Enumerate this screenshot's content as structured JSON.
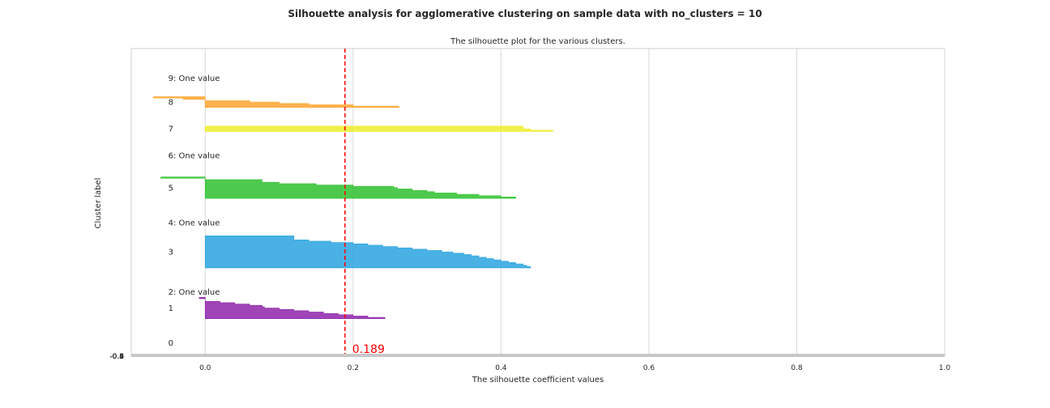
{
  "figure": {
    "suptitle": "Silhouette analysis for agglomerative clustering on sample data with no_clusters = 10"
  },
  "chart_data": {
    "type": "area",
    "title": "The silhouette plot for the various clusters.",
    "xlabel": "The silhouette coefficient values",
    "ylabel": "Cluster label",
    "xlim": [
      -0.1,
      1.0
    ],
    "ylim": [
      0,
      230
    ],
    "grid": true,
    "x_ticks": [
      "0.0",
      "0.2",
      "0.4",
      "0.6",
      "0.8",
      "1.0"
    ],
    "x_tick_values": [
      0.0,
      0.2,
      0.4,
      0.6,
      0.8,
      1.0
    ],
    "y_tick_labels_overlapped": [
      "-0.2",
      "-0.4",
      "-0.6",
      "-0.8"
    ],
    "average_silhouette": 0.189,
    "average_label": "0.189",
    "average_color": "#ff0000",
    "clusters": [
      {
        "label": "0",
        "color": "#7f7f7f",
        "y0": 10,
        "samples": []
      },
      {
        "label": "1",
        "color": "#8e24aa",
        "y0": 28,
        "samples": [
          0.243,
          0.22,
          0.2,
          0.18,
          0.16,
          0.14,
          0.12,
          0.1,
          0.08,
          0.077,
          0.06,
          0.04,
          0.02,
          0.0,
          0.0,
          -0.008
        ]
      },
      {
        "label": "2: One value",
        "color": "#1f77b4",
        "y0": 48,
        "samples": []
      },
      {
        "label": "3",
        "color": "#29a3df",
        "y0": 66,
        "samples": [
          0.44,
          0.435,
          0.43,
          0.42,
          0.41,
          0.4,
          0.39,
          0.38,
          0.37,
          0.36,
          0.35,
          0.335,
          0.32,
          0.3,
          0.28,
          0.26,
          0.24,
          0.22,
          0.2,
          0.17,
          0.14,
          0.12,
          0.12,
          0.12
        ]
      },
      {
        "label": "4: One value",
        "color": "#00bcd4",
        "y0": 100,
        "samples": []
      },
      {
        "label": "5",
        "color": "#2ec12e",
        "y0": 118,
        "samples": [
          0.42,
          0.4,
          0.37,
          0.34,
          0.31,
          0.3,
          0.28,
          0.26,
          0.255,
          0.2,
          0.15,
          0.1,
          0.077,
          0.077,
          0.0,
          -0.06
        ]
      },
      {
        "label": "6: One value",
        "color": "#7fd07f",
        "y0": 150,
        "samples": []
      },
      {
        "label": "7",
        "color": "#eded2a",
        "y0": 168,
        "samples": [
          0.47,
          0.44,
          0.43,
          0.43
        ]
      },
      {
        "label": "8",
        "color": "#ffa530",
        "y0": 186,
        "samples": [
          0.262,
          0.2,
          0.14,
          0.1,
          0.06,
          0.0,
          -0.03,
          -0.07
        ]
      },
      {
        "label": "9: One value",
        "color": "#d2d2d2",
        "y0": 208,
        "samples": []
      }
    ]
  }
}
